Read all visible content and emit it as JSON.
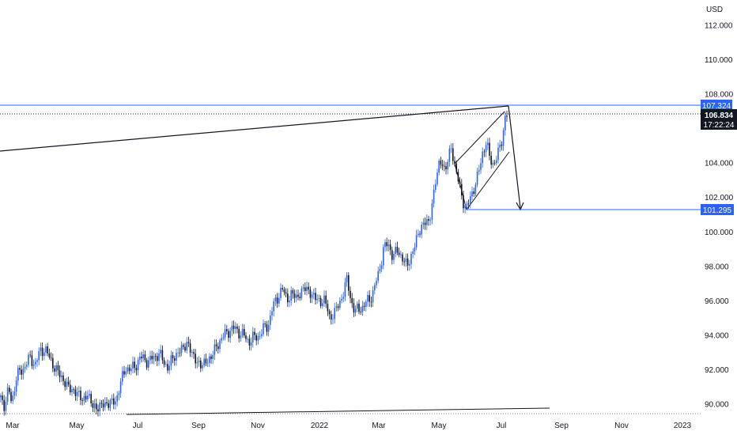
{
  "chart_data": {
    "type": "candlestick",
    "currency": "USD",
    "y_axis": {
      "ticks": [
        "90.000",
        "92.000",
        "94.000",
        "96.000",
        "98.000",
        "100.000",
        "102.000",
        "104.000",
        "108.000",
        "110.000",
        "112.000"
      ],
      "range": [
        89.6,
        113.6
      ]
    },
    "x_axis": {
      "ticks": [
        "Mar",
        "May",
        "Jul",
        "Sep",
        "Nov",
        "2022",
        "Mar",
        "May",
        "Jul",
        "Sep",
        "Nov",
        "2023"
      ]
    },
    "price_labels": {
      "resistance": "107.324",
      "last_price": "106.834",
      "countdown": "17:22:24",
      "target": "101.295"
    },
    "price_levels": {
      "resistance": 107.324,
      "last": 106.834,
      "target": 101.295
    },
    "colors": {
      "up": "#2962ff",
      "down": "#131722",
      "resistance_badge": "#2962ff",
      "last_badge": "#131722",
      "target_badge": "#2962ff",
      "grid_dots": "#131722"
    },
    "series": [
      {
        "t": 0,
        "v": 90.4
      },
      {
        "t": 4,
        "v": 89.9
      },
      {
        "t": 10,
        "v": 90.8
      },
      {
        "t": 14,
        "v": 90.1
      },
      {
        "t": 20,
        "v": 91.6
      },
      {
        "t": 26,
        "v": 91.9
      },
      {
        "t": 32,
        "v": 92.4
      },
      {
        "t": 38,
        "v": 92.6
      },
      {
        "t": 44,
        "v": 92.4
      },
      {
        "t": 50,
        "v": 93.0
      },
      {
        "t": 56,
        "v": 93.3
      },
      {
        "t": 62,
        "v": 92.6
      },
      {
        "t": 68,
        "v": 92.2
      },
      {
        "t": 74,
        "v": 91.7
      },
      {
        "t": 80,
        "v": 91.4
      },
      {
        "t": 86,
        "v": 90.9
      },
      {
        "t": 92,
        "v": 90.8
      },
      {
        "t": 98,
        "v": 90.6
      },
      {
        "t": 104,
        "v": 90.2
      },
      {
        "t": 110,
        "v": 90.6
      },
      {
        "t": 116,
        "v": 89.9
      },
      {
        "t": 122,
        "v": 89.8
      },
      {
        "t": 128,
        "v": 89.9
      },
      {
        "t": 134,
        "v": 90.1
      },
      {
        "t": 140,
        "v": 90.0
      },
      {
        "t": 146,
        "v": 90.3
      },
      {
        "t": 152,
        "v": 91.2
      },
      {
        "t": 158,
        "v": 92.2
      },
      {
        "t": 164,
        "v": 91.9
      },
      {
        "t": 170,
        "v": 92.3
      },
      {
        "t": 176,
        "v": 92.6
      },
      {
        "t": 182,
        "v": 92.7
      },
      {
        "t": 188,
        "v": 92.4
      },
      {
        "t": 194,
        "v": 92.8
      },
      {
        "t": 200,
        "v": 92.9
      },
      {
        "t": 206,
        "v": 92.5
      },
      {
        "t": 212,
        "v": 92.1
      },
      {
        "t": 218,
        "v": 92.7
      },
      {
        "t": 224,
        "v": 93.0
      },
      {
        "t": 230,
        "v": 93.2
      },
      {
        "t": 236,
        "v": 93.6
      },
      {
        "t": 242,
        "v": 92.9
      },
      {
        "t": 248,
        "v": 92.5
      },
      {
        "t": 254,
        "v": 92.2
      },
      {
        "t": 260,
        "v": 92.5
      },
      {
        "t": 266,
        "v": 92.7
      },
      {
        "t": 272,
        "v": 93.3
      },
      {
        "t": 278,
        "v": 93.7
      },
      {
        "t": 284,
        "v": 94.1
      },
      {
        "t": 290,
        "v": 94.3
      },
      {
        "t": 296,
        "v": 94.4
      },
      {
        "t": 302,
        "v": 94.2
      },
      {
        "t": 308,
        "v": 93.9
      },
      {
        "t": 314,
        "v": 93.7
      },
      {
        "t": 320,
        "v": 93.8
      },
      {
        "t": 326,
        "v": 94.0
      },
      {
        "t": 332,
        "v": 94.3
      },
      {
        "t": 338,
        "v": 94.6
      },
      {
        "t": 344,
        "v": 95.6
      },
      {
        "t": 350,
        "v": 96.2
      },
      {
        "t": 356,
        "v": 96.7
      },
      {
        "t": 362,
        "v": 96.1
      },
      {
        "t": 368,
        "v": 96.4
      },
      {
        "t": 374,
        "v": 96.2
      },
      {
        "t": 380,
        "v": 96.5
      },
      {
        "t": 386,
        "v": 96.8
      },
      {
        "t": 392,
        "v": 96.4
      },
      {
        "t": 398,
        "v": 96.2
      },
      {
        "t": 404,
        "v": 95.9
      },
      {
        "t": 410,
        "v": 96.1
      },
      {
        "t": 416,
        "v": 95.0
      },
      {
        "t": 422,
        "v": 95.3
      },
      {
        "t": 428,
        "v": 95.8
      },
      {
        "t": 434,
        "v": 96.6
      },
      {
        "t": 438,
        "v": 97.2
      },
      {
        "t": 442,
        "v": 96.3
      },
      {
        "t": 448,
        "v": 95.3
      },
      {
        "t": 454,
        "v": 95.6
      },
      {
        "t": 460,
        "v": 95.7
      },
      {
        "t": 466,
        "v": 96.1
      },
      {
        "t": 472,
        "v": 96.6
      },
      {
        "t": 478,
        "v": 97.6
      },
      {
        "t": 484,
        "v": 99.0
      },
      {
        "t": 490,
        "v": 99.3
      },
      {
        "t": 496,
        "v": 98.6
      },
      {
        "t": 502,
        "v": 98.9
      },
      {
        "t": 508,
        "v": 98.5
      },
      {
        "t": 514,
        "v": 98.0
      },
      {
        "t": 520,
        "v": 98.7
      },
      {
        "t": 526,
        "v": 99.6
      },
      {
        "t": 532,
        "v": 100.3
      },
      {
        "t": 538,
        "v": 100.7
      },
      {
        "t": 542,
        "v": 100.4
      },
      {
        "t": 546,
        "v": 101.8
      },
      {
        "t": 550,
        "v": 103.0
      },
      {
        "t": 554,
        "v": 103.8
      },
      {
        "t": 558,
        "v": 104.1
      },
      {
        "t": 562,
        "v": 103.6
      },
      {
        "t": 566,
        "v": 104.2
      },
      {
        "t": 570,
        "v": 104.9
      },
      {
        "t": 574,
        "v": 104.0
      },
      {
        "t": 578,
        "v": 103.1
      },
      {
        "t": 582,
        "v": 102.2
      },
      {
        "t": 586,
        "v": 101.7
      },
      {
        "t": 590,
        "v": 101.4
      },
      {
        "t": 594,
        "v": 101.9
      },
      {
        "t": 598,
        "v": 102.6
      },
      {
        "t": 602,
        "v": 103.0
      },
      {
        "t": 606,
        "v": 103.7
      },
      {
        "t": 610,
        "v": 104.8
      },
      {
        "t": 614,
        "v": 105.2
      },
      {
        "t": 618,
        "v": 104.3
      },
      {
        "t": 622,
        "v": 104.0
      },
      {
        "t": 626,
        "v": 104.2
      },
      {
        "t": 630,
        "v": 104.6
      },
      {
        "t": 634,
        "v": 105.4
      },
      {
        "t": 638,
        "v": 106.7
      },
      {
        "t": 641,
        "v": 106.83
      }
    ]
  }
}
